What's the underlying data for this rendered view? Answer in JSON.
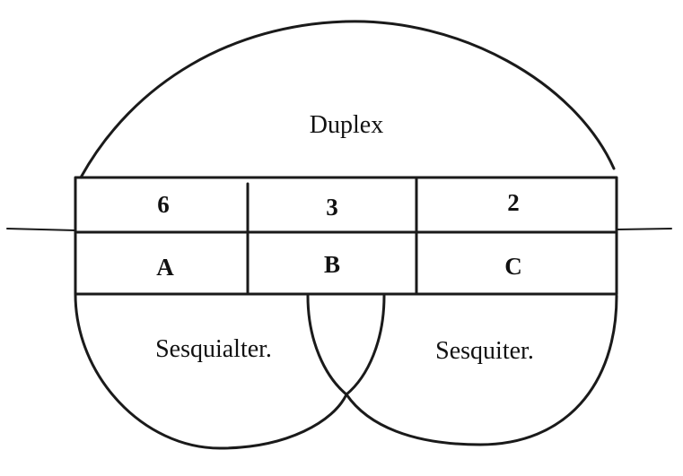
{
  "diagram": {
    "top_region": {
      "label": "Duplex"
    },
    "top_row": [
      {
        "label": "6"
      },
      {
        "label": "3"
      },
      {
        "label": "2"
      }
    ],
    "bottom_row": [
      {
        "label": "A"
      },
      {
        "label": "B"
      },
      {
        "label": "C"
      }
    ],
    "left_region": {
      "label": "Sesquialter."
    },
    "right_region": {
      "label": "Sesquiter."
    }
  }
}
